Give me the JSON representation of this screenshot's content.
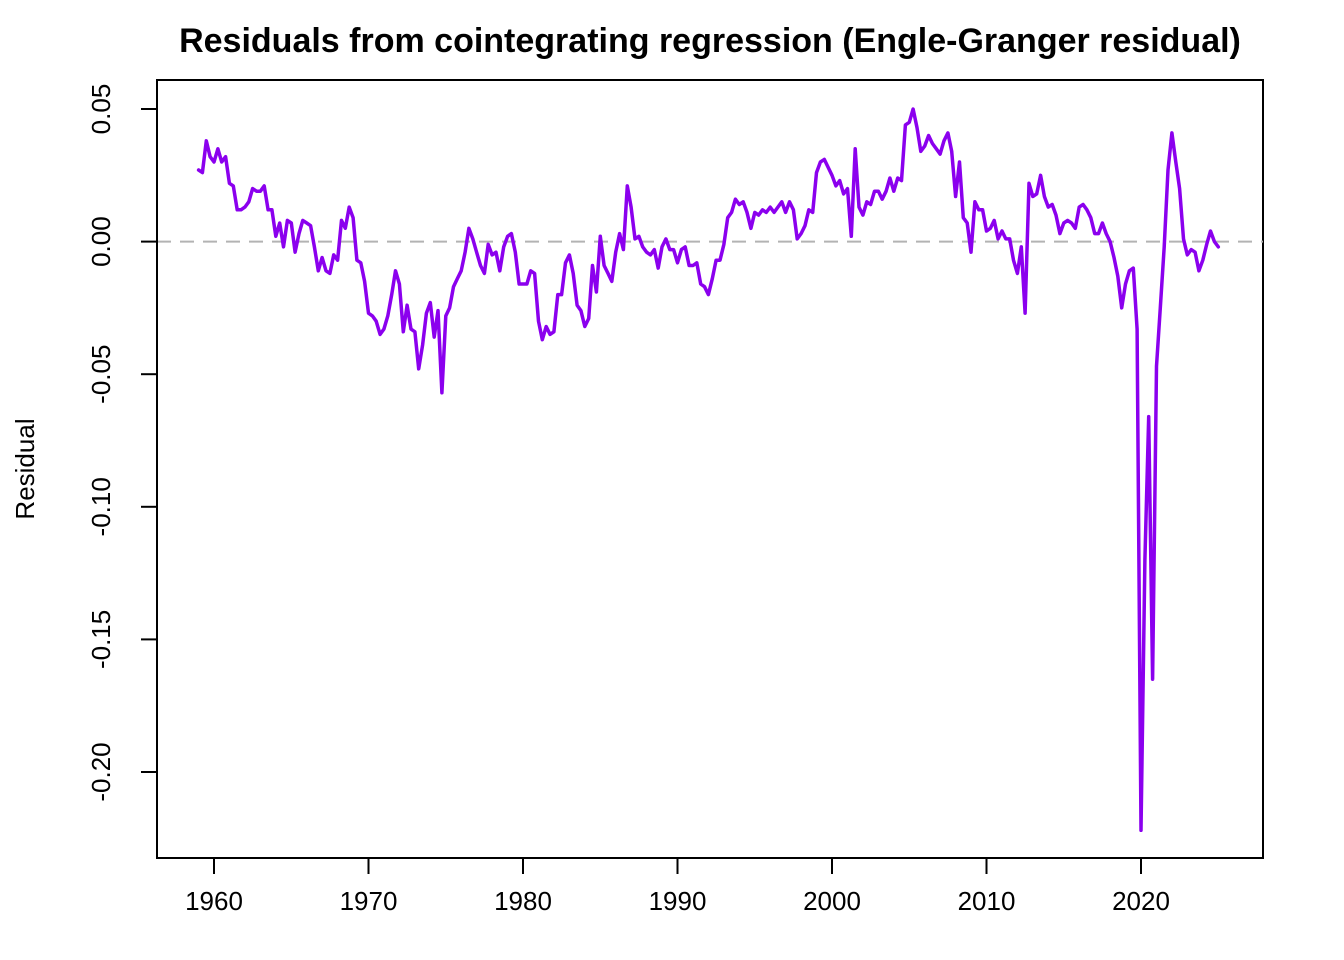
{
  "chart_data": {
    "type": "line",
    "title": "Residuals from cointegrating regression (Engle-Granger residual)",
    "xlabel": "",
    "ylabel": "Residual",
    "xlim": [
      1956.5,
      1926.0
    ],
    "ylim": [
      -0.2325,
      0.05
    ],
    "x_ticks": [
      1960,
      1970,
      1980,
      1990,
      2000,
      2010,
      2020
    ],
    "x_tick_labels": [
      "1960",
      "1970",
      "1980",
      "1990",
      "2000",
      "2010",
      "2020"
    ],
    "y_ticks": [
      0.05,
      0.0,
      -0.05,
      -0.1,
      -0.15,
      -0.2
    ],
    "y_tick_labels": [
      "0.05",
      "0.00",
      "-0.05",
      "-0.10",
      "-0.15",
      "-0.20"
    ],
    "reference_line": {
      "y": 0.0,
      "style": "dashed",
      "color": "#b3b3b3"
    },
    "grid": false,
    "legend": "none",
    "series": [
      {
        "color": "#8b00ee",
        "start": 1959.0,
        "step": 0.25,
        "values": [
          0.027,
          0.026,
          0.038,
          0.032,
          0.03,
          0.035,
          0.03,
          0.032,
          0.022,
          0.021,
          0.012,
          0.012,
          0.013,
          0.015,
          0.02,
          0.019,
          0.019,
          0.021,
          0.012,
          0.012,
          0.002,
          0.007,
          -0.002,
          0.008,
          0.007,
          -0.004,
          0.003,
          0.008,
          0.007,
          0.006,
          -0.002,
          -0.011,
          -0.006,
          -0.011,
          -0.012,
          -0.005,
          -0.007,
          0.008,
          0.005,
          0.013,
          0.009,
          -0.007,
          -0.008,
          -0.015,
          -0.027,
          -0.028,
          -0.03,
          -0.035,
          -0.033,
          -0.028,
          -0.02,
          -0.011,
          -0.016,
          -0.034,
          -0.024,
          -0.033,
          -0.034,
          -0.048,
          -0.039,
          -0.027,
          -0.023,
          -0.036,
          -0.026,
          -0.057,
          -0.028,
          -0.025,
          -0.017,
          -0.014,
          -0.011,
          -0.004,
          0.005,
          0.001,
          -0.004,
          -0.009,
          -0.012,
          -0.001,
          -0.005,
          -0.004,
          -0.011,
          -0.002,
          0.002,
          0.003,
          -0.004,
          -0.016,
          -0.016,
          -0.016,
          -0.011,
          -0.012,
          -0.03,
          -0.037,
          -0.032,
          -0.035,
          -0.034,
          -0.02,
          -0.02,
          -0.008,
          -0.005,
          -0.012,
          -0.024,
          -0.026,
          -0.032,
          -0.029,
          -0.009,
          -0.019,
          0.002,
          -0.009,
          -0.012,
          -0.015,
          -0.004,
          0.003,
          -0.003,
          0.021,
          0.013,
          0.001,
          0.002,
          -0.002,
          -0.004,
          -0.005,
          -0.003,
          -0.01,
          -0.002,
          0.001,
          -0.003,
          -0.003,
          -0.008,
          -0.003,
          -0.002,
          -0.009,
          -0.009,
          -0.008,
          -0.016,
          -0.017,
          -0.02,
          -0.014,
          -0.007,
          -0.007,
          -0.001,
          0.009,
          0.011,
          0.016,
          0.014,
          0.015,
          0.011,
          0.005,
          0.011,
          0.01,
          0.012,
          0.011,
          0.013,
          0.011,
          0.013,
          0.015,
          0.011,
          0.015,
          0.012,
          0.001,
          0.003,
          0.006,
          0.012,
          0.011,
          0.026,
          0.03,
          0.031,
          0.028,
          0.025,
          0.021,
          0.023,
          0.018,
          0.02,
          0.002,
          0.035,
          0.013,
          0.01,
          0.015,
          0.014,
          0.019,
          0.019,
          0.016,
          0.019,
          0.024,
          0.019,
          0.024,
          0.023,
          0.044,
          0.045,
          0.05,
          0.043,
          0.034,
          0.036,
          0.04,
          0.037,
          0.035,
          0.033,
          0.038,
          0.041,
          0.034,
          0.017,
          0.03,
          0.009,
          0.007,
          -0.004,
          0.015,
          0.012,
          0.012,
          0.004,
          0.005,
          0.008,
          0.001,
          0.004,
          0.001,
          0.001,
          -0.007,
          -0.012,
          -0.002,
          -0.027,
          0.022,
          0.017,
          0.018,
          0.025,
          0.017,
          0.013,
          0.014,
          0.01,
          0.003,
          0.007,
          0.008,
          0.007,
          0.005,
          0.013,
          0.014,
          0.012,
          0.009,
          0.003,
          0.003,
          0.007,
          0.003,
          0.0,
          -0.006,
          -0.013,
          -0.025,
          -0.016,
          -0.011,
          -0.01,
          -0.033,
          -0.222,
          -0.12,
          -0.066,
          -0.165,
          -0.047,
          -0.025,
          -0.002,
          0.027,
          0.041,
          0.03,
          0.02,
          0.001,
          -0.005,
          -0.003,
          -0.004,
          -0.011,
          -0.007,
          -0.001,
          0.004,
          0.0,
          -0.002
        ]
      }
    ]
  }
}
